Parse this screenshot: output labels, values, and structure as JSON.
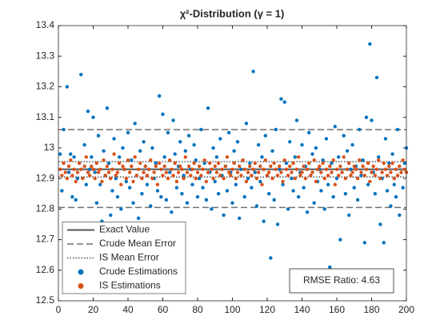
{
  "chart_data": {
    "type": "scatter",
    "title": "χ²-Distribution (γ = 1)",
    "annotation": "RMSE Ratio: 4.63",
    "legend": "southwest",
    "xlim": [
      0,
      200
    ],
    "xticks": [
      0,
      20,
      40,
      60,
      80,
      100,
      120,
      140,
      160,
      180,
      200
    ],
    "ylim": [
      12.5,
      13.4
    ],
    "yticks": [
      12.5,
      12.6,
      12.7,
      12.8,
      12.9,
      13,
      13.1,
      13.2,
      13.3,
      13.4
    ],
    "lines": [
      {
        "name": "Exact Value",
        "style": "solid",
        "color": "#555555",
        "values": [
          12.93
        ]
      },
      {
        "name": "Crude Mean Error",
        "style": "dashed",
        "color": "#707070",
        "values": [
          12.805,
          13.06
        ]
      },
      {
        "name": "IS Mean Error",
        "style": "dotted",
        "color": "#505050",
        "values": [
          12.905,
          12.955
        ]
      }
    ],
    "x": [
      1,
      2,
      3,
      4,
      5,
      6,
      7,
      8,
      9,
      10,
      11,
      12,
      13,
      14,
      15,
      16,
      17,
      18,
      19,
      20,
      21,
      22,
      23,
      24,
      25,
      26,
      27,
      28,
      29,
      30,
      31,
      32,
      33,
      34,
      35,
      36,
      37,
      38,
      39,
      40,
      41,
      42,
      43,
      44,
      45,
      46,
      47,
      48,
      49,
      50,
      51,
      52,
      53,
      54,
      55,
      56,
      57,
      58,
      59,
      60,
      61,
      62,
      63,
      64,
      65,
      66,
      67,
      68,
      69,
      70,
      71,
      72,
      73,
      74,
      75,
      76,
      77,
      78,
      79,
      80,
      81,
      82,
      83,
      84,
      85,
      86,
      87,
      88,
      89,
      90,
      91,
      92,
      93,
      94,
      95,
      96,
      97,
      98,
      99,
      100,
      101,
      102,
      103,
      104,
      105,
      106,
      107,
      108,
      109,
      110,
      111,
      112,
      113,
      114,
      115,
      116,
      117,
      118,
      119,
      120,
      121,
      122,
      123,
      124,
      125,
      126,
      127,
      128,
      129,
      130,
      131,
      132,
      133,
      134,
      135,
      136,
      137,
      138,
      139,
      140,
      141,
      142,
      143,
      144,
      145,
      146,
      147,
      148,
      149,
      150,
      151,
      152,
      153,
      154,
      155,
      156,
      157,
      158,
      159,
      160,
      161,
      162,
      163,
      164,
      165,
      166,
      167,
      168,
      169,
      170,
      171,
      172,
      173,
      174,
      175,
      176,
      177,
      178,
      179,
      180,
      181,
      182,
      183,
      184,
      185,
      186,
      187,
      188,
      189,
      190,
      191,
      192,
      193,
      194,
      195,
      196,
      197,
      198,
      199,
      200
    ],
    "series": [
      {
        "name": "Crude Estimations",
        "color": "#0072BD",
        "values": [
          12.98,
          12.86,
          13.06,
          12.64,
          13.2,
          12.92,
          12.98,
          12.84,
          12.97,
          12.83,
          12.9,
          12.95,
          13.24,
          12.75,
          13.01,
          12.88,
          13.12,
          12.93,
          12.97,
          13.1,
          12.92,
          12.82,
          13.04,
          12.88,
          12.76,
          12.99,
          12.91,
          13.13,
          12.95,
          12.78,
          12.86,
          13.03,
          12.9,
          12.84,
          12.97,
          12.8,
          13.0,
          12.93,
          12.89,
          13.05,
          12.87,
          12.96,
          12.82,
          13.08,
          12.91,
          12.77,
          12.99,
          12.85,
          13.02,
          12.94,
          12.88,
          12.93,
          12.81,
          13.0,
          12.9,
          12.95,
          12.86,
          13.17,
          12.84,
          13.11,
          12.97,
          12.83,
          13.05,
          12.92,
          12.79,
          13.09,
          12.98,
          12.87,
          12.94,
          13.02,
          12.85,
          12.91,
          12.99,
          12.82,
          13.04,
          12.93,
          12.88,
          13.01,
          12.96,
          12.84,
          12.9,
          13.06,
          12.87,
          12.95,
          12.83,
          13.13,
          12.92,
          12.8,
          13.0,
          12.89,
          12.97,
          12.85,
          13.03,
          12.91,
          12.78,
          12.94,
          12.86,
          13.05,
          12.92,
          12.82,
          12.99,
          12.88,
          13.02,
          12.77,
          12.93,
          12.96,
          12.84,
          13.08,
          12.9,
          12.95,
          12.87,
          13.25,
          12.92,
          12.81,
          13.01,
          12.89,
          12.97,
          12.76,
          13.04,
          12.91,
          12.85,
          12.64,
          12.99,
          12.83,
          13.06,
          12.75,
          12.93,
          13.16,
          12.88,
          13.15,
          12.95,
          12.8,
          13.02,
          12.9,
          12.86,
          12.97,
          13.09,
          12.84,
          12.92,
          13.01,
          12.87,
          12.94,
          12.79,
          13.05,
          12.91,
          12.98,
          12.82,
          13.0,
          12.89,
          12.93,
          12.86,
          12.96,
          12.8,
          13.03,
          12.88,
          12.61,
          12.95,
          12.84,
          13.07,
          12.9,
          12.97,
          12.7,
          12.92,
          13.04,
          12.85,
          12.99,
          12.78,
          12.93,
          13.01,
          12.87,
          12.94,
          12.83,
          13.06,
          12.91,
          12.96,
          12.69,
          13.1,
          12.88,
          13.34,
          13.09,
          12.92,
          12.85,
          13.23,
          12.97,
          12.75,
          12.9,
          12.69,
          13.03,
          12.86,
          12.95,
          12.81,
          12.98,
          12.88,
          12.84,
          13.06,
          12.78,
          12.92,
          12.87,
          12.95,
          13.0
        ]
      },
      {
        "name": "IS Estimations",
        "color": "#D95319",
        "values": [
          12.93,
          12.91,
          12.95,
          12.92,
          12.9,
          12.94,
          12.96,
          12.91,
          12.93,
          12.89,
          12.92,
          12.95,
          12.93,
          12.9,
          12.94,
          12.97,
          12.92,
          12.91,
          12.94,
          12.93,
          12.9,
          12.95,
          12.92,
          12.93,
          12.89,
          12.96,
          12.91,
          12.94,
          12.92,
          12.9,
          12.93,
          12.98,
          12.91,
          12.92,
          12.95,
          12.88,
          12.94,
          12.93,
          12.9,
          12.96,
          12.92,
          12.94,
          12.89,
          12.97,
          12.91,
          12.93,
          12.95,
          12.9,
          12.92,
          12.94,
          12.91,
          12.93,
          12.96,
          12.9,
          12.92,
          12.94,
          12.88,
          12.95,
          12.93,
          12.91,
          12.94,
          12.92,
          12.9,
          12.96,
          12.93,
          12.91,
          12.95,
          12.89,
          12.92,
          12.94,
          12.93,
          12.9,
          12.97,
          12.92,
          12.94,
          12.91,
          12.93,
          12.95,
          12.9,
          12.92,
          12.94,
          12.91,
          12.93,
          12.96,
          12.89,
          12.92,
          12.95,
          12.93,
          12.9,
          12.94,
          12.92,
          12.95,
          12.91,
          12.93,
          12.9,
          12.94,
          12.97,
          12.92,
          12.91,
          12.93,
          12.95,
          12.9,
          12.92,
          12.94,
          12.91,
          12.96,
          12.93,
          12.89,
          12.92,
          12.94,
          12.91,
          12.93,
          12.95,
          12.9,
          12.92,
          12.94,
          12.88,
          12.93,
          12.96,
          12.91,
          12.92,
          12.94,
          12.9,
          12.95,
          12.93,
          12.91,
          12.94,
          12.92,
          12.89,
          12.96,
          12.93,
          12.91,
          12.94,
          12.92,
          12.95,
          12.9,
          12.93,
          12.97,
          12.91,
          12.92,
          12.94,
          12.9,
          12.93,
          12.95,
          12.91,
          12.92,
          12.96,
          12.89,
          12.93,
          12.94,
          12.92,
          12.95,
          12.9,
          12.93,
          12.91,
          12.94,
          12.92,
          12.96,
          12.88,
          12.93,
          12.91,
          12.94,
          12.92,
          12.97,
          12.9,
          12.93,
          12.95,
          12.91,
          12.92,
          12.94,
          12.93,
          12.9,
          12.96,
          12.92,
          12.94,
          12.91,
          12.93,
          12.95,
          12.89,
          12.92,
          12.94,
          12.91,
          12.93,
          12.96,
          12.9,
          12.92,
          12.95,
          12.93,
          12.91,
          12.94,
          12.92,
          12.95,
          12.9,
          12.93,
          12.91,
          12.94,
          12.92,
          12.96,
          12.93,
          12.92
        ]
      }
    ]
  }
}
